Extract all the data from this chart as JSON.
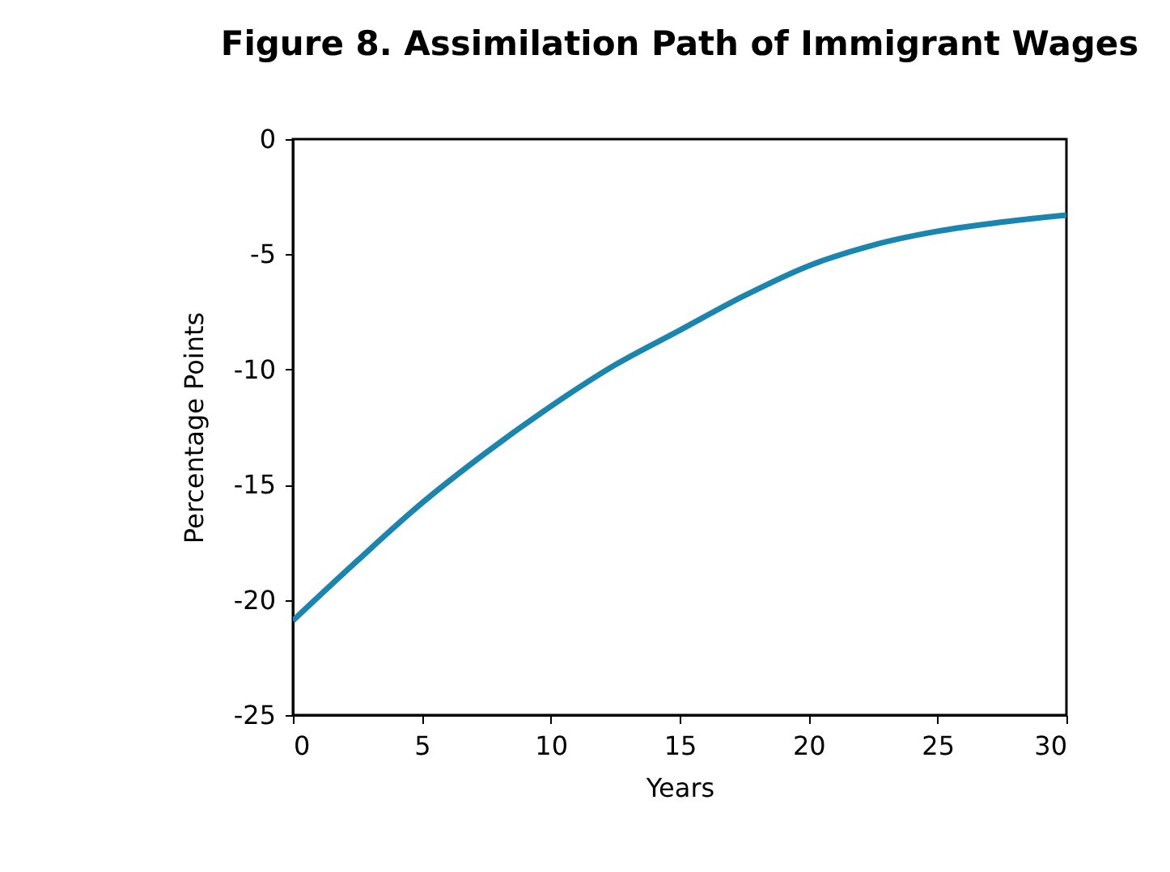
{
  "chart_data": {
    "type": "line",
    "title": "Figure 8. Assimilation Path of Immigrant Wages",
    "xlabel": "Years",
    "ylabel": "Percentage Points",
    "x": [
      0,
      2.5,
      5,
      7.5,
      10,
      12.5,
      15,
      17.5,
      20,
      22.5,
      25,
      27.5,
      30
    ],
    "series": [
      {
        "color": "#1a86b0",
        "values": [
          -20.9,
          -18.3,
          -15.8,
          -13.6,
          -11.6,
          -9.8,
          -8.3,
          -6.8,
          -5.5,
          -4.6,
          -4.0,
          -3.6,
          -3.3
        ]
      }
    ],
    "xlim": [
      0,
      30
    ],
    "xticks": [
      0,
      5,
      10,
      15,
      20,
      25,
      30
    ],
    "ylim": [
      -25,
      0
    ],
    "yticks": [
      0,
      -5,
      -10,
      -15,
      -20,
      -25
    ],
    "grid": false,
    "legend": false,
    "marker": "none",
    "line_style": "solid"
  }
}
